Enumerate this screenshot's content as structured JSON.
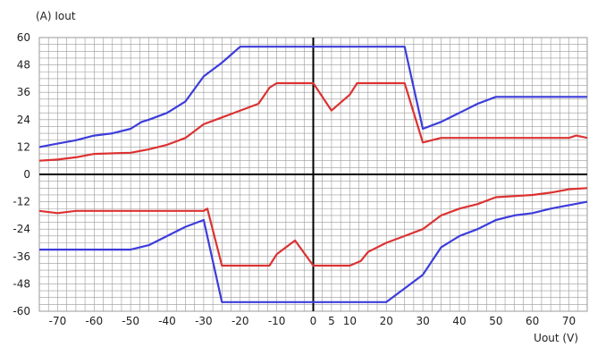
{
  "chart_data": {
    "type": "line",
    "title": "",
    "ylabel": "(A)  Iout",
    "xlabel": "Uout  (V)",
    "xlim": [
      -75,
      75
    ],
    "ylim": [
      -60,
      60
    ],
    "grid": true,
    "legend": "none",
    "x_ticks": [
      -70,
      -60,
      -50,
      -40,
      -30,
      -20,
      -10,
      0,
      5,
      10,
      20,
      30,
      40,
      50,
      60,
      70
    ],
    "y_ticks": [
      60,
      48,
      36,
      24,
      12,
      0,
      -12,
      -24,
      -36,
      -48,
      -60
    ],
    "colors": {
      "blue": "#3c3cdc",
      "red": "#dc3232",
      "grid": "#9a9a9a",
      "axis": "#000000"
    },
    "series": [
      {
        "color": "#3c3cdc",
        "points": [
          [
            -75,
            12
          ],
          [
            -70,
            13.5
          ],
          [
            -65,
            15
          ],
          [
            -60,
            17
          ],
          [
            -55,
            18
          ],
          [
            -50,
            20
          ],
          [
            -47,
            23
          ],
          [
            -45,
            24
          ],
          [
            -40,
            27
          ],
          [
            -35,
            32
          ],
          [
            -30,
            43
          ],
          [
            -25,
            49
          ],
          [
            -20,
            56
          ],
          [
            -10,
            56
          ],
          [
            0,
            56
          ],
          [
            10,
            56
          ],
          [
            20,
            56
          ],
          [
            25,
            56
          ],
          [
            30,
            20
          ],
          [
            35,
            23
          ],
          [
            40,
            27
          ],
          [
            45,
            31
          ],
          [
            50,
            34
          ],
          [
            75,
            34
          ]
        ]
      },
      {
        "color": "#dc3232",
        "points": [
          [
            -75,
            6
          ],
          [
            -70,
            6.5
          ],
          [
            -65,
            7.5
          ],
          [
            -60,
            9
          ],
          [
            -50,
            9.5
          ],
          [
            -45,
            11
          ],
          [
            -40,
            13
          ],
          [
            -35,
            16
          ],
          [
            -30,
            22
          ],
          [
            -25,
            25
          ],
          [
            -20,
            28
          ],
          [
            -15,
            31
          ],
          [
            -12,
            38
          ],
          [
            -10,
            40
          ],
          [
            0,
            40
          ],
          [
            5,
            28
          ],
          [
            10,
            35
          ],
          [
            12,
            40
          ],
          [
            20,
            40
          ],
          [
            25,
            40
          ],
          [
            30,
            14
          ],
          [
            35,
            16
          ],
          [
            70,
            16
          ],
          [
            72,
            17
          ],
          [
            75,
            16
          ]
        ]
      },
      {
        "color": "#dc3232",
        "points": [
          [
            -75,
            -16
          ],
          [
            -70,
            -17
          ],
          [
            -65,
            -16
          ],
          [
            -50,
            -16
          ],
          [
            -30,
            -16
          ],
          [
            -29,
            -15
          ],
          [
            -25,
            -40
          ],
          [
            -20,
            -40
          ],
          [
            -12,
            -40
          ],
          [
            -10,
            -35
          ],
          [
            -5,
            -29
          ],
          [
            0,
            -40
          ],
          [
            10,
            -40
          ],
          [
            13,
            -38
          ],
          [
            15,
            -34
          ],
          [
            20,
            -30
          ],
          [
            25,
            -27
          ],
          [
            30,
            -24
          ],
          [
            35,
            -18
          ],
          [
            40,
            -15
          ],
          [
            45,
            -13
          ],
          [
            50,
            -10
          ],
          [
            60,
            -9
          ],
          [
            65,
            -8
          ],
          [
            70,
            -6.5
          ],
          [
            75,
            -6
          ]
        ]
      },
      {
        "color": "#3c3cdc",
        "points": [
          [
            -75,
            -33
          ],
          [
            -70,
            -33
          ],
          [
            -60,
            -33
          ],
          [
            -50,
            -33
          ],
          [
            -45,
            -31
          ],
          [
            -40,
            -27
          ],
          [
            -35,
            -23
          ],
          [
            -30,
            -20
          ],
          [
            -25,
            -56
          ],
          [
            -20,
            -56
          ],
          [
            0,
            -56
          ],
          [
            20,
            -56
          ],
          [
            25,
            -50
          ],
          [
            30,
            -44
          ],
          [
            35,
            -32
          ],
          [
            40,
            -27
          ],
          [
            45,
            -24
          ],
          [
            50,
            -20
          ],
          [
            55,
            -18
          ],
          [
            60,
            -17
          ],
          [
            65,
            -15
          ],
          [
            70,
            -13.5
          ],
          [
            75,
            -12
          ]
        ]
      }
    ]
  }
}
